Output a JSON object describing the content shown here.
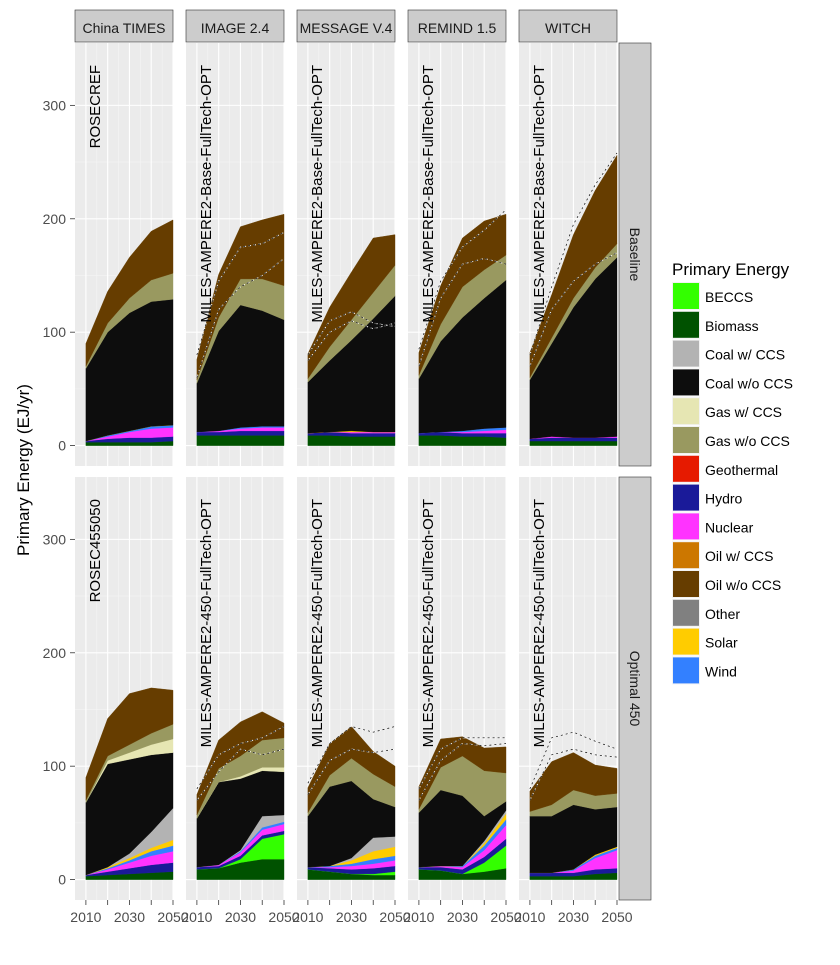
{
  "chart_data": {
    "type": "area",
    "title": "",
    "ylabel": "Primary Energy (EJ/yr)",
    "xlabel": "",
    "x_ticks": [
      2010,
      2020,
      2030,
      2040,
      2050
    ],
    "x_tick_labels": [
      "2010",
      "2020",
      "2030",
      "2040",
      "2050"
    ],
    "xlim": [
      2005,
      2050
    ],
    "ylim": [
      -18,
      355
    ],
    "y_ticks": [
      0,
      100,
      200,
      300
    ],
    "y_tick_labels": [
      "0",
      "100",
      "200",
      "300"
    ],
    "grid": true,
    "models": [
      "China TIMES",
      "IMAGE 2.4",
      "MESSAGE V.4",
      "REMIND 1.5",
      "WITCH"
    ],
    "scenarios": [
      "Baseline",
      "Optimal 450"
    ],
    "legend": {
      "title": "Primary Energy",
      "position": "right",
      "entries": [
        {
          "name": "BECCS",
          "color": "#33ff00"
        },
        {
          "name": "Biomass",
          "color": "#005200"
        },
        {
          "name": "Coal w/ CCS",
          "color": "#b3b3b3"
        },
        {
          "name": "Coal w/o CCS",
          "color": "#0d0d0d"
        },
        {
          "name": "Gas w/ CCS",
          "color": "#e6e6b3"
        },
        {
          "name": "Gas w/o CCS",
          "color": "#999960"
        },
        {
          "name": "Geothermal",
          "color": "#e61a00"
        },
        {
          "name": "Hydro",
          "color": "#1a1a99"
        },
        {
          "name": "Nuclear",
          "color": "#ff33ff"
        },
        {
          "name": "Oil w/ CCS",
          "color": "#cc7700"
        },
        {
          "name": "Oil w/o CCS",
          "color": "#663d00"
        },
        {
          "name": "Other",
          "color": "#808080"
        },
        {
          "name": "Solar",
          "color": "#ffcc00"
        },
        {
          "name": "Wind",
          "color": "#3380ff"
        }
      ]
    },
    "stack_order": [
      "Biomass",
      "BECCS",
      "Hydro",
      "Nuclear",
      "Wind",
      "Solar",
      "Coal w/ CCS",
      "Coal w/o CCS",
      "Gas w/ CCS",
      "Gas w/o CCS",
      "Oil w/o CCS"
    ],
    "panels": [
      {
        "model": "China TIMES",
        "scenario": "Baseline",
        "label": "ROSECREF",
        "x": [
          2010,
          2020,
          2030,
          2040,
          2050
        ],
        "series": {
          "Biomass": [
            3,
            3,
            3,
            3,
            4
          ],
          "Hydro": [
            1,
            3,
            4,
            4,
            4
          ],
          "Nuclear": [
            0,
            2,
            5,
            8,
            8
          ],
          "Wind": [
            0,
            1,
            1,
            2,
            2
          ],
          "Solar": [
            0,
            0,
            0,
            0,
            0
          ],
          "Coal w/o CCS": [
            64,
            91,
            104,
            110,
            111
          ],
          "Gas w/o CCS": [
            2,
            8,
            13,
            19,
            23
          ],
          "Oil w/o CCS": [
            20,
            28,
            36,
            43,
            47
          ]
        },
        "ref_lines": []
      },
      {
        "model": "IMAGE 2.4",
        "scenario": "Baseline",
        "label": "MILES-AMPERE2-Base-FullTech-OPT",
        "x": [
          2010,
          2020,
          2030,
          2040,
          2050
        ],
        "series": {
          "Biomass": [
            9,
            9,
            9,
            9,
            9
          ],
          "Hydro": [
            3,
            3,
            4,
            4,
            4
          ],
          "Nuclear": [
            0,
            1,
            2,
            3,
            3
          ],
          "Wind": [
            0,
            0,
            1,
            1,
            1
          ],
          "Coal w/o CCS": [
            43,
            88,
            108,
            102,
            94
          ],
          "Gas w/o CCS": [
            3,
            12,
            23,
            28,
            30
          ],
          "Oil w/o CCS": [
            18,
            38,
            46,
            52,
            63
          ]
        },
        "ref_lines": [
          [
            80,
            145,
            175,
            178,
            188
          ],
          [
            60,
            120,
            140,
            150,
            165
          ]
        ]
      },
      {
        "model": "MESSAGE V.4",
        "scenario": "Baseline",
        "label": "MILES-AMPERE2-Base-FullTech-OPT",
        "x": [
          2010,
          2020,
          2030,
          2040,
          2050
        ],
        "series": {
          "Biomass": [
            9,
            9,
            8,
            8,
            8
          ],
          "Hydro": [
            2,
            3,
            3,
            3,
            3
          ],
          "Nuclear": [
            0,
            0,
            1,
            1,
            1
          ],
          "Solar": [
            0,
            0,
            1,
            0,
            0
          ],
          "Coal w/o CCS": [
            45,
            63,
            80,
            100,
            120
          ],
          "Gas w/o CCS": [
            3,
            12,
            18,
            23,
            27
          ],
          "Oil w/o CCS": [
            22,
            35,
            42,
            48,
            27
          ]
        },
        "ref_lines": [
          [
            80,
            110,
            118,
            108,
            105
          ],
          [
            75,
            100,
            110,
            103,
            108
          ]
        ]
      },
      {
        "model": "REMIND 1.5",
        "scenario": "Baseline",
        "label": "MILES-AMPERE2-Base-FullTech-OPT",
        "x": [
          2010,
          2020,
          2030,
          2040,
          2050
        ],
        "series": {
          "Biomass": [
            9,
            9,
            8,
            8,
            7
          ],
          "Hydro": [
            2,
            3,
            3,
            3,
            4
          ],
          "Nuclear": [
            0,
            0,
            1,
            2,
            3
          ],
          "Wind": [
            0,
            0,
            1,
            2,
            2
          ],
          "Coal w/o CCS": [
            48,
            80,
            100,
            115,
            130
          ],
          "Gas w/o CCS": [
            3,
            15,
            27,
            25,
            22
          ],
          "Oil w/o CCS": [
            20,
            34,
            43,
            43,
            36
          ]
        },
        "ref_lines": [
          [
            85,
            145,
            175,
            190,
            208
          ],
          [
            70,
            130,
            160,
            165,
            160
          ]
        ]
      },
      {
        "model": "WITCH",
        "scenario": "Baseline",
        "label": "MILES-AMPERE2-Base-FullTech-OPT",
        "x": [
          2010,
          2020,
          2030,
          2040,
          2050
        ],
        "series": {
          "Biomass": [
            4,
            4,
            4,
            4,
            4
          ],
          "Hydro": [
            2,
            3,
            3,
            3,
            3
          ],
          "Nuclear": [
            0,
            1,
            0,
            0,
            1
          ],
          "Coal w/o CCS": [
            52,
            82,
            115,
            140,
            158
          ],
          "Gas w/o CCS": [
            2,
            5,
            8,
            10,
            12
          ],
          "Oil w/o CCS": [
            22,
            38,
            56,
            68,
            78
          ]
        },
        "ref_lines": [
          [
            80,
            140,
            195,
            230,
            258
          ],
          [
            70,
            120,
            145,
            160,
            170
          ]
        ]
      },
      {
        "model": "China TIMES",
        "scenario": "Optimal 450",
        "label": "ROSEC455050",
        "x": [
          2010,
          2020,
          2030,
          2040,
          2050
        ],
        "series": {
          "Biomass": [
            3,
            4,
            5,
            6,
            7
          ],
          "Hydro": [
            1,
            3,
            5,
            7,
            8
          ],
          "Nuclear": [
            0,
            2,
            5,
            8,
            10
          ],
          "Wind": [
            0,
            1,
            2,
            4,
            5
          ],
          "Solar": [
            0,
            1,
            2,
            3,
            5
          ],
          "Coal w/ CCS": [
            0,
            0,
            4,
            14,
            28
          ],
          "Coal w/o CCS": [
            64,
            91,
            83,
            68,
            49
          ],
          "Gas w/ CCS": [
            0,
            3,
            6,
            9,
            12
          ],
          "Gas w/o CCS": [
            2,
            4,
            7,
            10,
            13
          ],
          "Oil w/o CCS": [
            20,
            33,
            45,
            40,
            30
          ]
        },
        "ref_lines": []
      },
      {
        "model": "IMAGE 2.4",
        "scenario": "Optimal 450",
        "label": "MILES-AMPERE2-450-FullTech-OPT",
        "x": [
          2010,
          2020,
          2030,
          2040,
          2050
        ],
        "series": {
          "Biomass": [
            9,
            10,
            15,
            18,
            18
          ],
          "BECCS": [
            0,
            0,
            3,
            18,
            22
          ],
          "Hydro": [
            2,
            2,
            3,
            3,
            3
          ],
          "Nuclear": [
            0,
            1,
            3,
            5,
            6
          ],
          "Wind": [
            0,
            0,
            1,
            2,
            2
          ],
          "Coal w/ CCS": [
            0,
            0,
            1,
            10,
            6
          ],
          "Coal w/o CCS": [
            43,
            73,
            63,
            40,
            38
          ],
          "Gas w/ CCS": [
            0,
            0,
            2,
            3,
            4
          ],
          "Gas w/o CCS": [
            3,
            12,
            18,
            24,
            26
          ],
          "Oil w/o CCS": [
            18,
            25,
            30,
            25,
            13
          ]
        },
        "ref_lines": [
          [
            80,
            110,
            120,
            125,
            135
          ],
          [
            70,
            95,
            115,
            110,
            115
          ]
        ]
      },
      {
        "model": "MESSAGE V.4",
        "scenario": "Optimal 450",
        "label": "MILES-AMPERE2-450-FullTech-OPT",
        "x": [
          2010,
          2020,
          2030,
          2040,
          2050
        ],
        "series": {
          "Biomass": [
            9,
            7,
            5,
            4,
            4
          ],
          "BECCS": [
            0,
            0,
            0,
            1,
            3
          ],
          "Hydro": [
            2,
            3,
            4,
            5,
            5
          ],
          "Nuclear": [
            0,
            1,
            3,
            4,
            5
          ],
          "Wind": [
            0,
            1,
            2,
            4,
            4
          ],
          "Solar": [
            0,
            0,
            3,
            7,
            8
          ],
          "Coal w/ CCS": [
            0,
            0,
            2,
            12,
            9
          ],
          "Coal w/o CCS": [
            45,
            70,
            68,
            34,
            26
          ],
          "Gas w/o CCS": [
            3,
            10,
            20,
            22,
            18
          ],
          "Oil w/o CCS": [
            22,
            28,
            28,
            20,
            18
          ]
        },
        "ref_lines": [
          [
            85,
            120,
            135,
            130,
            135
          ],
          [
            75,
            105,
            115,
            112,
            115
          ]
        ]
      },
      {
        "model": "REMIND 1.5",
        "scenario": "Optimal 450",
        "label": "MILES-AMPERE2-450-FullTech-OPT",
        "x": [
          2010,
          2020,
          2030,
          2040,
          2050
        ],
        "series": {
          "Biomass": [
            9,
            8,
            5,
            7,
            10
          ],
          "BECCS": [
            0,
            0,
            0,
            8,
            20
          ],
          "Hydro": [
            2,
            3,
            4,
            5,
            6
          ],
          "Nuclear": [
            0,
            1,
            2,
            6,
            12
          ],
          "Wind": [
            0,
            0,
            1,
            4,
            5
          ],
          "Solar": [
            0,
            0,
            0,
            2,
            5
          ],
          "Coal w/ CCS": [
            0,
            0,
            0,
            2,
            3
          ],
          "Coal w/o CCS": [
            48,
            67,
            62,
            22,
            8
          ],
          "Gas w/o CCS": [
            3,
            20,
            35,
            40,
            25
          ],
          "Oil w/o CCS": [
            20,
            25,
            17,
            20,
            23
          ]
        },
        "ref_lines": [
          [
            80,
            115,
            125,
            125,
            125
          ],
          [
            70,
            105,
            120,
            118,
            120
          ]
        ]
      },
      {
        "model": "WITCH",
        "scenario": "Optimal 450",
        "label": "MILES-AMPERE2-450-FullTech-OPT",
        "x": [
          2010,
          2020,
          2030,
          2040,
          2050
        ],
        "series": {
          "Biomass": [
            3,
            3,
            3,
            5,
            6
          ],
          "Hydro": [
            3,
            3,
            3,
            4,
            4
          ],
          "Nuclear": [
            0,
            0,
            2,
            10,
            16
          ],
          "Wind": [
            0,
            0,
            1,
            2,
            2
          ],
          "Solar": [
            0,
            0,
            0,
            1,
            1
          ],
          "Coal w/o CCS": [
            50,
            50,
            57,
            40,
            35
          ],
          "Gas w/o CCS": [
            4,
            10,
            13,
            12,
            12
          ],
          "Oil w/o CCS": [
            18,
            38,
            33,
            27,
            22
          ]
        },
        "ref_lines": [
          [
            80,
            125,
            130,
            122,
            115
          ],
          [
            70,
            110,
            115,
            110,
            108
          ]
        ]
      }
    ]
  }
}
